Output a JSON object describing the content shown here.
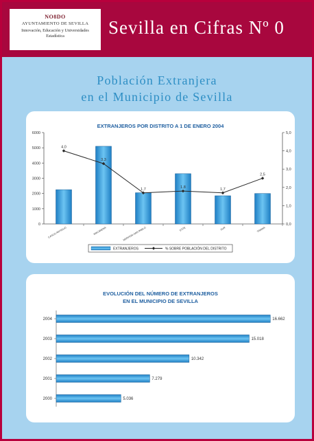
{
  "header": {
    "logo_mark": "NO8DO",
    "logo_line1": "AYUNTAMIENTO DE SEVILLA",
    "logo_line2": "Innovación, Educación y Universidades",
    "logo_line3": "Estadística",
    "title": "Sevilla en Cifras Nº 0"
  },
  "main_title": {
    "line1": "Población Extranjera",
    "line2": "en el Municipio de Sevilla"
  },
  "colors": {
    "brand": "#a8073e",
    "background": "#a7d3ef",
    "title_blue": "#2d8ec4",
    "bar_fill": "#3aa0dc",
    "line": "#2a2a2a"
  },
  "chart_data": [
    {
      "type": "bar",
      "title": "EXTRANJEROS POR DISTRITO A 1 DE ENERO 2004",
      "categories": [
        "CASCO ANTIGUO",
        "MACARENA",
        "NERVION-SAN PABLO",
        "ESTE",
        "SUR",
        "TRIANA"
      ],
      "ylim": [
        0,
        6000
      ],
      "yticks": [
        "0",
        "1000",
        "2000",
        "3000",
        "4000",
        "5000",
        "6000"
      ],
      "y2lim": [
        0,
        5
      ],
      "y2ticks": [
        "0,0",
        "1,0",
        "2,0",
        "3,0",
        "4,0",
        "5,0"
      ],
      "series": [
        {
          "name": "EXTRANJEROS",
          "kind": "bar",
          "values": [
            2250,
            5100,
            2050,
            3300,
            1850,
            2000
          ]
        },
        {
          "name": "% SOBRE POBLACIÓN DEL DISTRITO",
          "kind": "line",
          "axis": "right",
          "values": [
            4.0,
            3.3,
            1.7,
            1.8,
            1.7,
            2.5
          ],
          "labels": [
            "4,0",
            "3,3",
            "1,7",
            "1,8",
            "1,7",
            "2,5"
          ]
        }
      ],
      "legend": "bottom",
      "grid": false
    },
    {
      "type": "bar",
      "orientation": "horizontal",
      "title_line1": "EVOLUCIÓN DEL NÚMERO DE EXTRANJEROS",
      "title_line2": "EN EL MUNICIPIO DE SEVILLA",
      "categories": [
        "2004",
        "2003",
        "2002",
        "2001",
        "2000"
      ],
      "values": [
        16662,
        15018,
        10342,
        7279,
        5036
      ],
      "labels": [
        "16.662",
        "15.018",
        "10.342",
        "7.279",
        "5.036"
      ],
      "xlim": [
        0,
        17500
      ],
      "grid": false
    }
  ]
}
